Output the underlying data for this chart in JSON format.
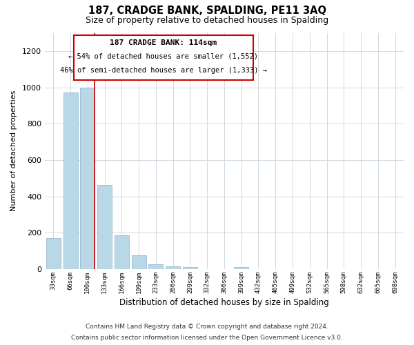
{
  "title": "187, CRADGE BANK, SPALDING, PE11 3AQ",
  "subtitle": "Size of property relative to detached houses in Spalding",
  "xlabel": "Distribution of detached houses by size in Spalding",
  "ylabel": "Number of detached properties",
  "bar_labels": [
    "33sqm",
    "66sqm",
    "100sqm",
    "133sqm",
    "166sqm",
    "199sqm",
    "233sqm",
    "266sqm",
    "299sqm",
    "332sqm",
    "366sqm",
    "399sqm",
    "432sqm",
    "465sqm",
    "499sqm",
    "532sqm",
    "565sqm",
    "598sqm",
    "632sqm",
    "665sqm",
    "698sqm"
  ],
  "bar_values": [
    170,
    970,
    1000,
    465,
    185,
    75,
    25,
    15,
    10,
    0,
    0,
    10,
    0,
    0,
    0,
    0,
    0,
    0,
    0,
    0,
    0
  ],
  "bar_color": "#b8d8e8",
  "vline_x": 2.4,
  "vline_color": "#cc0000",
  "ylim": [
    0,
    1300
  ],
  "yticks": [
    0,
    200,
    400,
    600,
    800,
    1000,
    1200
  ],
  "annotation_title": "187 CRADGE BANK: 114sqm",
  "annotation_line1": "← 54% of detached houses are smaller (1,552)",
  "annotation_line2": "46% of semi-detached houses are larger (1,333) →",
  "footer_line1": "Contains HM Land Registry data © Crown copyright and database right 2024.",
  "footer_line2": "Contains public sector information licensed under the Open Government Licence v3.0.",
  "bg_color": "#ffffff",
  "grid_color": "#d0d8e0"
}
